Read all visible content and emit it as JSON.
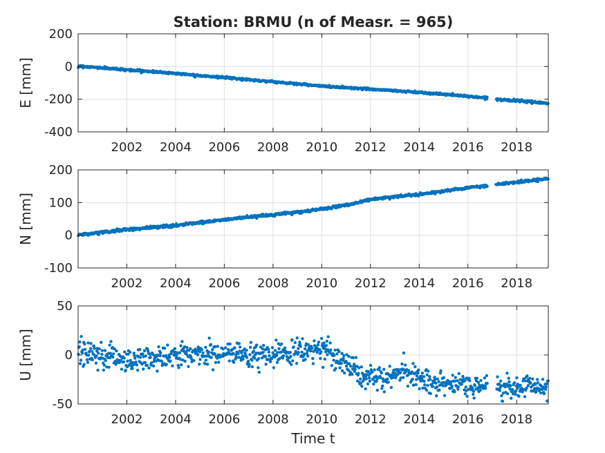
{
  "figure": {
    "title": "Station: BRMU (n of Measr. = 965)",
    "xlabel": "Time t"
  },
  "chart_data": [
    {
      "type": "scatter",
      "panel": "E",
      "ylabel": "E [mm]",
      "xlabel": "",
      "xlim": [
        2000.0,
        2019.3
      ],
      "ylim": [
        -400,
        200
      ],
      "xticks": [
        2002,
        2004,
        2006,
        2008,
        2010,
        2012,
        2014,
        2016,
        2018
      ],
      "yticks": [
        200,
        0,
        -200,
        -400
      ],
      "grid": true,
      "color": "#0072BD",
      "n": 965,
      "trend_points": [
        [
          2000.0,
          3
        ],
        [
          2002,
          -20
        ],
        [
          2004,
          -42
        ],
        [
          2006,
          -68
        ],
        [
          2008,
          -93
        ],
        [
          2010,
          -120
        ],
        [
          2012,
          -138
        ],
        [
          2014,
          -158
        ],
        [
          2016,
          -182
        ],
        [
          2016.8,
          -192
        ],
        [
          2017.2,
          -200
        ],
        [
          2019.3,
          -225
        ]
      ],
      "noise": 3,
      "gaps": [
        [
          2016.8,
          2017.15
        ]
      ]
    },
    {
      "type": "scatter",
      "panel": "N",
      "ylabel": "N [mm]",
      "xlabel": "",
      "xlim": [
        2000.0,
        2019.3
      ],
      "ylim": [
        -100,
        200
      ],
      "xticks": [
        2002,
        2004,
        2006,
        2008,
        2010,
        2012,
        2014,
        2016,
        2018
      ],
      "yticks": [
        200,
        100,
        0,
        -100
      ],
      "grid": true,
      "color": "#0072BD",
      "n": 965,
      "trend_points": [
        [
          2000.0,
          1
        ],
        [
          2002,
          17
        ],
        [
          2004,
          30
        ],
        [
          2006,
          48
        ],
        [
          2008,
          62
        ],
        [
          2010,
          80
        ],
        [
          2011.3,
          96
        ],
        [
          2012,
          110
        ],
        [
          2014,
          125
        ],
        [
          2016,
          145
        ],
        [
          2016.8,
          152
        ],
        [
          2017.2,
          156
        ],
        [
          2019.3,
          173
        ]
      ],
      "noise": 2,
      "gaps": [
        [
          2016.8,
          2017.15
        ]
      ]
    },
    {
      "type": "scatter",
      "panel": "U",
      "ylabel": "U [mm]",
      "xlabel": "Time t",
      "xlim": [
        2000.0,
        2019.3
      ],
      "ylim": [
        -50,
        50
      ],
      "xticks": [
        2002,
        2004,
        2006,
        2008,
        2010,
        2012,
        2014,
        2016,
        2018
      ],
      "yticks": [
        50,
        0,
        -50
      ],
      "grid": true,
      "color": "#0072BD",
      "n": 965,
      "trend_points": [
        [
          2000.0,
          2
        ],
        [
          2001,
          0
        ],
        [
          2002,
          -5
        ],
        [
          2004,
          0
        ],
        [
          2006,
          2
        ],
        [
          2008,
          0
        ],
        [
          2009.5,
          5
        ],
        [
          2010.2,
          5
        ],
        [
          2011,
          -8
        ],
        [
          2011.6,
          -22
        ],
        [
          2012.5,
          -25
        ],
        [
          2013.3,
          -18
        ],
        [
          2014,
          -22
        ],
        [
          2014.5,
          -30
        ],
        [
          2016,
          -32
        ],
        [
          2016.8,
          -32
        ],
        [
          2017.2,
          -33
        ],
        [
          2019.3,
          -33
        ]
      ],
      "noise": 6,
      "gaps": [
        [
          2016.8,
          2017.15
        ]
      ]
    }
  ]
}
